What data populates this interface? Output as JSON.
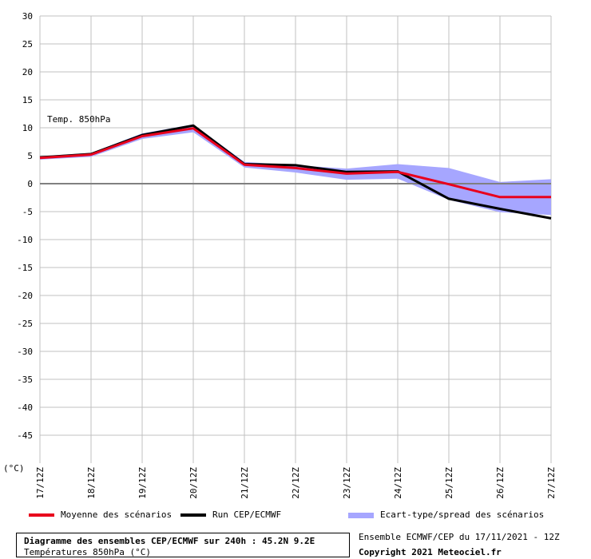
{
  "chart_data": {
    "type": "line",
    "annotation": "Temp. 850hPa",
    "unit_label": "(°C)",
    "ylim": [
      -50,
      30
    ],
    "yticks": [
      30,
      25,
      20,
      15,
      10,
      5,
      0,
      -5,
      -10,
      -15,
      -20,
      -25,
      -30,
      -35,
      -40,
      -45
    ],
    "grid": true,
    "categories": [
      "17/12Z",
      "18/12Z",
      "19/12Z",
      "20/12Z",
      "21/12Z",
      "22/12Z",
      "23/12Z",
      "24/12Z",
      "25/12Z",
      "26/12Z",
      "27/12Z"
    ],
    "series": [
      {
        "name": "Moyenne des scénarios",
        "color": "#e8001c",
        "values": [
          4.6,
          5.2,
          8.5,
          9.9,
          3.4,
          2.8,
          1.8,
          2.1,
          -0.1,
          -2.4,
          -2.4
        ]
      },
      {
        "name": "Run CEP/ECMWF",
        "color": "#000000",
        "values": [
          4.7,
          5.3,
          8.7,
          10.4,
          3.5,
          3.3,
          2.1,
          2.2,
          -2.7,
          -4.5,
          -6.2
        ]
      },
      {
        "name": "Ecart-type/spread des scénarios",
        "color": "#a6a6ff",
        "type": "band",
        "lower": [
          4.3,
          4.8,
          8.0,
          9.2,
          2.9,
          2.0,
          0.7,
          0.9,
          -2.9,
          -5.1,
          -5.6
        ],
        "upper": [
          4.9,
          5.5,
          9.0,
          10.6,
          3.9,
          3.3,
          2.7,
          3.5,
          2.8,
          0.3,
          0.8
        ]
      }
    ]
  },
  "legend": {
    "mean": "Moyenne des scénarios",
    "run": "Run CEP/ECMWF",
    "spread": "Ecart-type/spread des scénarios"
  },
  "caption": {
    "title": "Diagramme des ensembles CEP/ECMWF sur 240h : 45.2N 9.2E",
    "subtitle": "Températures 850hPa (°C)"
  },
  "footer": {
    "run_info": "Ensemble ECMWF/CEP du 17/11/2021 - 12Z",
    "copyright": "Copyright 2021 Meteociel.fr"
  }
}
